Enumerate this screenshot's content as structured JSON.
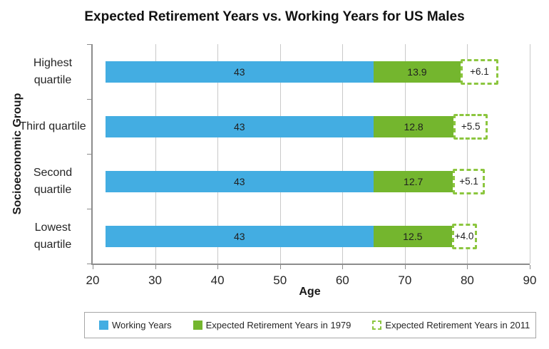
{
  "colors": {
    "bar_blue": "#43ADE2",
    "bar_green": "#74B62E",
    "dash_green": "#8CC63F",
    "gridline": "#C9C9C9",
    "axis": "#8C8C8C",
    "legend_border": "#A6A6A6"
  },
  "chart_data": {
    "type": "bar",
    "orientation": "horizontal",
    "stacked": true,
    "title": "Expected Retirement Years vs. Working Years for US Males",
    "xlabel": "Age",
    "ylabel": "Socioeconomic Group",
    "xlim": [
      20,
      90
    ],
    "xticks": [
      "20",
      "30",
      "40",
      "50",
      "60",
      "70",
      "80",
      "90"
    ],
    "grid": "vertical",
    "legend_position": "bottom",
    "bar_start": 22,
    "categories": [
      "Highest quartile",
      "Third quartile",
      "Second quartile",
      "Lowest quartile"
    ],
    "series": [
      {
        "name": "Working Years",
        "style": "solid-blue",
        "values": [
          43,
          43,
          43,
          43
        ],
        "labels": [
          "43",
          "43",
          "43",
          "43"
        ]
      },
      {
        "name": "Expected Retirement Years in 1979",
        "style": "solid-green",
        "values": [
          13.9,
          12.8,
          12.7,
          12.5
        ],
        "labels": [
          "13.9",
          "12.8",
          "12.7",
          "12.5"
        ]
      },
      {
        "name": "Expected Retirement Years in 2011",
        "style": "dashed-outline",
        "values": [
          6.1,
          5.5,
          5.1,
          4.0
        ],
        "labels": [
          "+6.1",
          "+5.5",
          "+5.1",
          "+4.0"
        ]
      }
    ],
    "bar_totals": [
      85.0,
      83.3,
      82.8,
      81.5
    ]
  }
}
